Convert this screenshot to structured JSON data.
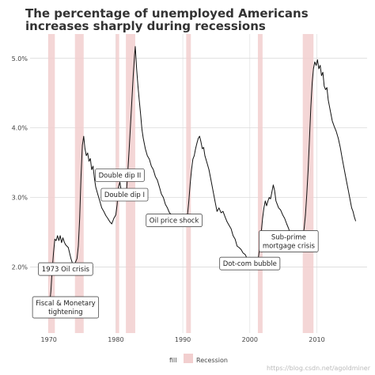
{
  "chart_data": {
    "type": "line",
    "title_lines": [
      "The percentage of unemployed Americans",
      "increases sharply during recessions"
    ],
    "xlabel": "",
    "ylabel": "",
    "xlim": [
      1967.2,
      2017.5
    ],
    "ylim": [
      1.05,
      5.35
    ],
    "x_ticks": [
      1970,
      1980,
      1990,
      2000,
      2010
    ],
    "x_tick_labels": [
      "1970",
      "1980",
      "1990",
      "2000",
      "2010"
    ],
    "y_ticks": [
      2.0,
      3.0,
      4.0,
      5.0
    ],
    "y_tick_labels": [
      "2.0%",
      "3.0%",
      "4.0%",
      "5.0%"
    ],
    "grid": true,
    "recessions": [
      {
        "start": 1969.9,
        "end": 1970.9
      },
      {
        "start": 1973.9,
        "end": 1975.2
      },
      {
        "start": 1980.0,
        "end": 1980.5
      },
      {
        "start": 1981.5,
        "end": 1982.9
      },
      {
        "start": 1990.5,
        "end": 1991.2
      },
      {
        "start": 2001.2,
        "end": 2001.9
      },
      {
        "start": 2007.9,
        "end": 2009.5
      }
    ],
    "series": [
      {
        "color": "#111111",
        "points": [
          [
            1967.9,
            1.55
          ],
          [
            1968.1,
            1.48
          ],
          [
            1968.2,
            1.55
          ],
          [
            1968.4,
            1.45
          ],
          [
            1968.6,
            1.42
          ],
          [
            1968.8,
            1.35
          ],
          [
            1969.0,
            1.38
          ],
          [
            1969.2,
            1.33
          ],
          [
            1969.5,
            1.35
          ],
          [
            1969.8,
            1.33
          ],
          [
            1970.1,
            1.45
          ],
          [
            1970.3,
            1.65
          ],
          [
            1970.5,
            1.95
          ],
          [
            1970.7,
            2.2
          ],
          [
            1970.9,
            2.4
          ],
          [
            1971.1,
            2.38
          ],
          [
            1971.3,
            2.45
          ],
          [
            1971.5,
            2.38
          ],
          [
            1971.7,
            2.45
          ],
          [
            1971.9,
            2.35
          ],
          [
            1972.1,
            2.42
          ],
          [
            1972.3,
            2.36
          ],
          [
            1972.5,
            2.32
          ],
          [
            1972.7,
            2.3
          ],
          [
            1972.9,
            2.28
          ],
          [
            1973.1,
            2.2
          ],
          [
            1973.3,
            2.12
          ],
          [
            1973.5,
            2.06
          ],
          [
            1973.7,
            2.04
          ],
          [
            1973.9,
            2.05
          ],
          [
            1974.2,
            2.12
          ],
          [
            1974.4,
            2.3
          ],
          [
            1974.6,
            2.7
          ],
          [
            1974.8,
            3.3
          ],
          [
            1975.0,
            3.75
          ],
          [
            1975.2,
            3.88
          ],
          [
            1975.4,
            3.7
          ],
          [
            1975.6,
            3.6
          ],
          [
            1975.8,
            3.64
          ],
          [
            1976.0,
            3.52
          ],
          [
            1976.2,
            3.56
          ],
          [
            1976.4,
            3.4
          ],
          [
            1976.6,
            3.45
          ],
          [
            1976.8,
            3.28
          ],
          [
            1977.0,
            3.15
          ],
          [
            1977.3,
            3.05
          ],
          [
            1977.6,
            2.95
          ],
          [
            1977.9,
            2.85
          ],
          [
            1978.2,
            2.8
          ],
          [
            1978.5,
            2.74
          ],
          [
            1978.8,
            2.7
          ],
          [
            1979.1,
            2.65
          ],
          [
            1979.4,
            2.62
          ],
          [
            1979.7,
            2.7
          ],
          [
            1980.0,
            2.75
          ],
          [
            1980.2,
            2.9
          ],
          [
            1980.4,
            3.15
          ],
          [
            1980.6,
            3.22
          ],
          [
            1980.8,
            3.1
          ],
          [
            1981.0,
            3.02
          ],
          [
            1981.3,
            2.98
          ],
          [
            1981.6,
            3.1
          ],
          [
            1981.8,
            3.4
          ],
          [
            1982.0,
            3.7
          ],
          [
            1982.2,
            4.05
          ],
          [
            1982.4,
            4.4
          ],
          [
            1982.6,
            4.75
          ],
          [
            1982.8,
            5.05
          ],
          [
            1982.9,
            5.17
          ],
          [
            1983.1,
            4.85
          ],
          [
            1983.3,
            4.6
          ],
          [
            1983.5,
            4.4
          ],
          [
            1983.7,
            4.2
          ],
          [
            1983.9,
            3.98
          ],
          [
            1984.1,
            3.85
          ],
          [
            1984.4,
            3.7
          ],
          [
            1984.7,
            3.6
          ],
          [
            1985.0,
            3.55
          ],
          [
            1985.3,
            3.45
          ],
          [
            1985.6,
            3.4
          ],
          [
            1985.9,
            3.3
          ],
          [
            1986.2,
            3.25
          ],
          [
            1986.5,
            3.15
          ],
          [
            1986.8,
            3.05
          ],
          [
            1987.1,
            3.0
          ],
          [
            1987.4,
            2.9
          ],
          [
            1987.7,
            2.85
          ],
          [
            1988.0,
            2.78
          ],
          [
            1988.3,
            2.75
          ],
          [
            1988.6,
            2.7
          ],
          [
            1988.9,
            2.68
          ],
          [
            1989.2,
            2.65
          ],
          [
            1989.6,
            2.62
          ],
          [
            1989.9,
            2.6
          ],
          [
            1990.2,
            2.58
          ],
          [
            1990.5,
            2.6
          ],
          [
            1990.7,
            2.75
          ],
          [
            1990.9,
            2.95
          ],
          [
            1991.1,
            3.2
          ],
          [
            1991.3,
            3.4
          ],
          [
            1991.5,
            3.55
          ],
          [
            1991.7,
            3.6
          ],
          [
            1991.9,
            3.7
          ],
          [
            1992.1,
            3.78
          ],
          [
            1992.3,
            3.85
          ],
          [
            1992.5,
            3.88
          ],
          [
            1992.7,
            3.8
          ],
          [
            1992.9,
            3.7
          ],
          [
            1993.1,
            3.72
          ],
          [
            1993.3,
            3.6
          ],
          [
            1993.6,
            3.5
          ],
          [
            1993.9,
            3.4
          ],
          [
            1994.2,
            3.25
          ],
          [
            1994.5,
            3.1
          ],
          [
            1994.8,
            2.95
          ],
          [
            1995.1,
            2.8
          ],
          [
            1995.4,
            2.85
          ],
          [
            1995.7,
            2.78
          ],
          [
            1996.0,
            2.8
          ],
          [
            1996.3,
            2.72
          ],
          [
            1996.6,
            2.65
          ],
          [
            1996.9,
            2.6
          ],
          [
            1997.2,
            2.55
          ],
          [
            1997.5,
            2.45
          ],
          [
            1997.8,
            2.4
          ],
          [
            1998.1,
            2.3
          ],
          [
            1998.4,
            2.28
          ],
          [
            1998.7,
            2.25
          ],
          [
            1999.0,
            2.2
          ],
          [
            1999.3,
            2.18
          ],
          [
            1999.6,
            2.12
          ],
          [
            1999.9,
            2.08
          ],
          [
            2000.2,
            2.02
          ],
          [
            2000.5,
            2.05
          ],
          [
            2000.8,
            1.98
          ],
          [
            2001.1,
            2.05
          ],
          [
            2001.3,
            2.15
          ],
          [
            2001.5,
            2.3
          ],
          [
            2001.7,
            2.5
          ],
          [
            2001.9,
            2.7
          ],
          [
            2002.1,
            2.85
          ],
          [
            2002.3,
            2.95
          ],
          [
            2002.5,
            2.88
          ],
          [
            2002.7,
            2.95
          ],
          [
            2002.9,
            3.0
          ],
          [
            2003.1,
            2.98
          ],
          [
            2003.3,
            3.08
          ],
          [
            2003.5,
            3.18
          ],
          [
            2003.7,
            3.1
          ],
          [
            2003.9,
            2.95
          ],
          [
            2004.1,
            2.9
          ],
          [
            2004.3,
            2.85
          ],
          [
            2004.6,
            2.82
          ],
          [
            2004.9,
            2.75
          ],
          [
            2005.2,
            2.7
          ],
          [
            2005.5,
            2.62
          ],
          [
            2005.8,
            2.55
          ],
          [
            2006.1,
            2.45
          ],
          [
            2006.4,
            2.4
          ],
          [
            2006.7,
            2.36
          ],
          [
            2007.0,
            2.35
          ],
          [
            2007.3,
            2.38
          ],
          [
            2007.6,
            2.4
          ],
          [
            2007.9,
            2.45
          ],
          [
            2008.1,
            2.55
          ],
          [
            2008.3,
            2.75
          ],
          [
            2008.5,
            3.05
          ],
          [
            2008.7,
            3.4
          ],
          [
            2008.9,
            3.85
          ],
          [
            2009.1,
            4.3
          ],
          [
            2009.3,
            4.65
          ],
          [
            2009.5,
            4.85
          ],
          [
            2009.7,
            4.95
          ],
          [
            2009.9,
            4.9
          ],
          [
            2010.1,
            4.98
          ],
          [
            2010.3,
            4.85
          ],
          [
            2010.5,
            4.9
          ],
          [
            2010.7,
            4.75
          ],
          [
            2010.9,
            4.8
          ],
          [
            2011.1,
            4.6
          ],
          [
            2011.3,
            4.55
          ],
          [
            2011.5,
            4.58
          ],
          [
            2011.7,
            4.4
          ],
          [
            2011.9,
            4.3
          ],
          [
            2012.1,
            4.2
          ],
          [
            2012.3,
            4.1
          ],
          [
            2012.6,
            4.02
          ],
          [
            2012.9,
            3.95
          ],
          [
            2013.2,
            3.85
          ],
          [
            2013.5,
            3.72
          ],
          [
            2013.8,
            3.55
          ],
          [
            2014.1,
            3.4
          ],
          [
            2014.4,
            3.25
          ],
          [
            2014.7,
            3.1
          ],
          [
            2015.0,
            2.95
          ],
          [
            2015.2,
            2.85
          ],
          [
            2015.4,
            2.8
          ],
          [
            2015.6,
            2.72
          ],
          [
            2015.8,
            2.66
          ]
        ]
      }
    ],
    "annotations": [
      {
        "text": "Fiscal & Monetary",
        "text2": "tightening",
        "x": 1972.5,
        "y": 1.42
      },
      {
        "text": "1973 Oil crisis",
        "text2": "",
        "x": 1972.5,
        "y": 1.97
      },
      {
        "text": "Double dip II",
        "text2": "",
        "x": 1980.6,
        "y": 3.32
      },
      {
        "text": "Double dip I",
        "text2": "",
        "x": 1981.3,
        "y": 3.04
      },
      {
        "text": "Oil price shock",
        "text2": "",
        "x": 1988.7,
        "y": 2.67
      },
      {
        "text": "Dot-com bubble",
        "text2": "",
        "x": 2000.0,
        "y": 2.05
      },
      {
        "text": "Sub-prime",
        "text2": "mortgage crisis",
        "x": 2005.8,
        "y": 2.37
      }
    ],
    "legend": {
      "title": "fill",
      "label": "Recession",
      "position": "bottom"
    },
    "watermark": "https://blog.csdn.net/agoldminer"
  }
}
